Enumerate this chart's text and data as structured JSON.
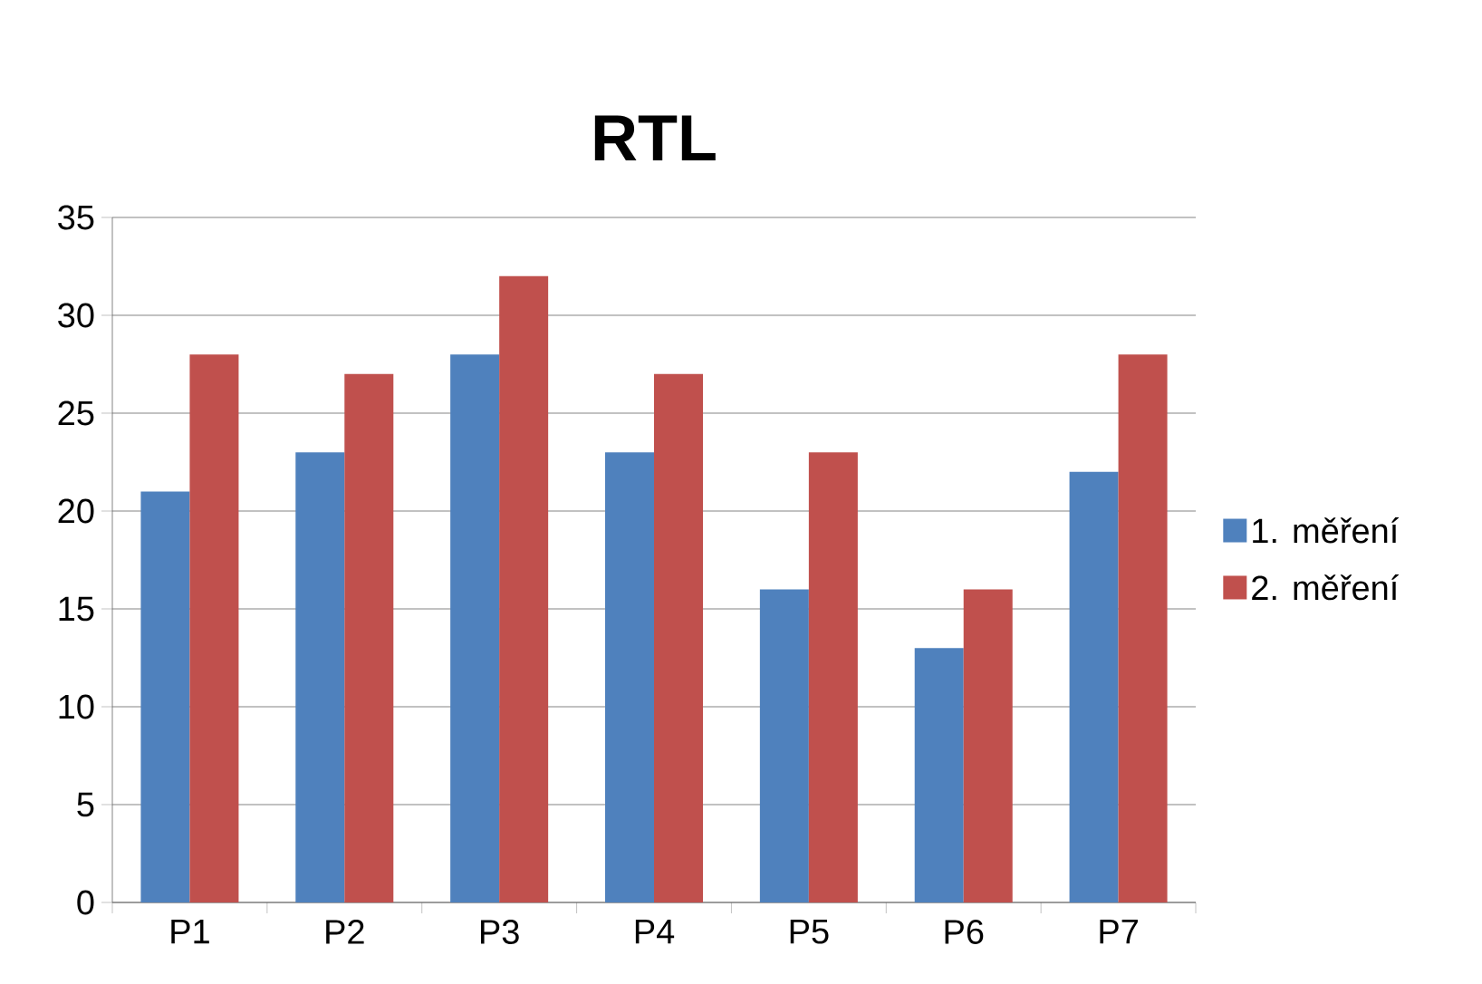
{
  "chart_data": {
    "type": "bar",
    "title": "RTL",
    "categories": [
      "P1",
      "P2",
      "P3",
      "P4",
      "P5",
      "P6",
      "P7"
    ],
    "series": [
      {
        "name": "1. měření",
        "color": "#4f81bd",
        "values": [
          21,
          23,
          28,
          23,
          16,
          13,
          22
        ]
      },
      {
        "name": "2. měření",
        "color": "#c0504d",
        "values": [
          28,
          27,
          32,
          27,
          23,
          16,
          28
        ]
      }
    ],
    "ylim": [
      0,
      35
    ],
    "yticks": [
      0,
      5,
      10,
      15,
      20,
      25,
      30,
      35
    ],
    "grid": "y",
    "legend": "right"
  }
}
